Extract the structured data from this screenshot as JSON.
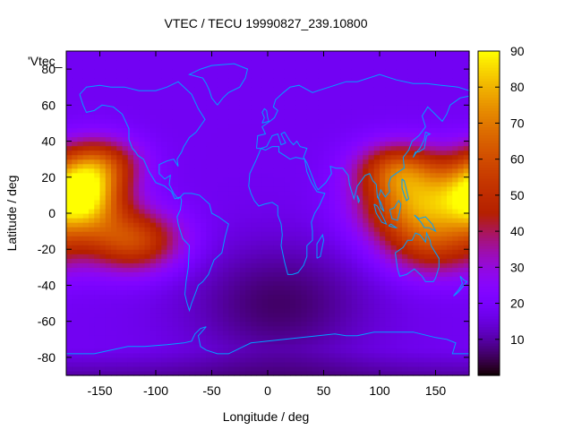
{
  "chart_data": {
    "type": "heatmap",
    "title": "VTEC / TECU 19990827_239.10800",
    "xlabel": "Longitude / deg",
    "ylabel": "Latitude / deg",
    "key_label": "'Vtec_",
    "xlim": [
      -180,
      180
    ],
    "ylim": [
      -90,
      90
    ],
    "x_ticks": [
      -150,
      -100,
      -50,
      0,
      50,
      100,
      150
    ],
    "y_ticks": [
      -80,
      -60,
      -40,
      -20,
      0,
      20,
      40,
      60,
      80
    ],
    "colorbar": {
      "min": 0,
      "max": 90,
      "ticks": [
        10,
        20,
        30,
        40,
        50,
        60,
        70,
        80,
        90
      ]
    },
    "colormap": "black-purple-red-orange-yellow",
    "colors": {
      "coastline": "#00a0ff",
      "low": "#000000",
      "mid": "#9000d8",
      "high": "#ffff00"
    },
    "grid_resolution_deg": {
      "lon": 5,
      "lat": 2.5
    },
    "vtec_sources": [
      {
        "lon": -165,
        "lat": 10,
        "amplitude": 65,
        "sigma_lon": 25,
        "sigma_lat": 14
      },
      {
        "lon": -120,
        "lat": -15,
        "amplitude": 40,
        "sigma_lon": 30,
        "sigma_lat": 12
      },
      {
        "lon": -150,
        "lat": 28,
        "amplitude": 30,
        "sigma_lon": 25,
        "sigma_lat": 10
      },
      {
        "lon": 135,
        "lat": 5,
        "amplitude": 55,
        "sigma_lon": 35,
        "sigma_lat": 16
      },
      {
        "lon": 115,
        "lat": 25,
        "amplitude": 30,
        "sigma_lon": 25,
        "sigma_lat": 10
      },
      {
        "lon": 150,
        "lat": -20,
        "amplitude": 22,
        "sigma_lon": 30,
        "sigma_lat": 12
      }
    ],
    "vtec_background": 18,
    "vtec_low_region": {
      "lon": 10,
      "lat": -50,
      "depth": 12,
      "sigma_lon": 60,
      "sigma_lat": 25
    }
  }
}
